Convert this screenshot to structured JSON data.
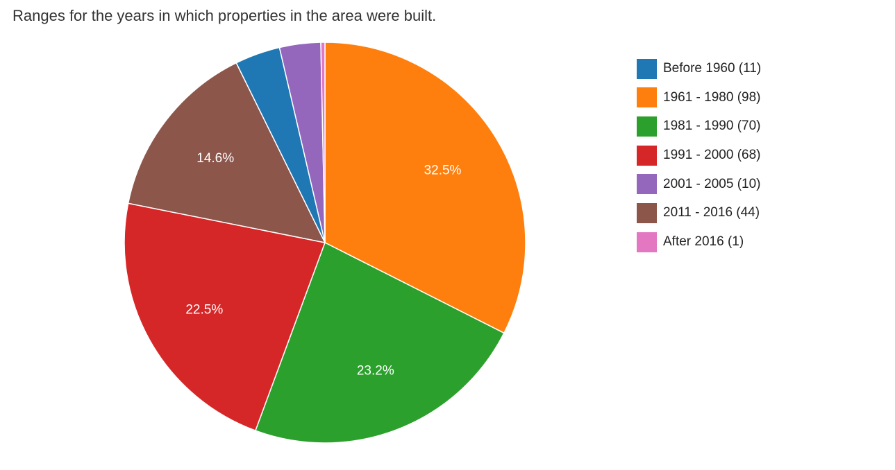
{
  "chart_data": {
    "type": "pie",
    "title": "Ranges for the years in which properties in the area were built.",
    "legend_position": "right",
    "start_angle_deg": 0,
    "direction": "clockwise",
    "slices": [
      {
        "label": "Before 1960",
        "value": 11,
        "color": "#1f77b4",
        "legend_text": "Before 1960 (11)",
        "percent_label": ""
      },
      {
        "label": "1961 - 1980",
        "value": 98,
        "color": "#ff7f0e",
        "legend_text": "1961 - 1980 (98)",
        "percent_label": "32.5%"
      },
      {
        "label": "1981 - 1990",
        "value": 70,
        "color": "#2ca02c",
        "legend_text": "1981 - 1990 (70)",
        "percent_label": "23.2%"
      },
      {
        "label": "1991 - 2000",
        "value": 68,
        "color": "#d62728",
        "legend_text": "1991 - 2000 (68)",
        "percent_label": "22.5%"
      },
      {
        "label": "2001 - 2005",
        "value": 10,
        "color": "#9467bd",
        "legend_text": "2001 - 2005 (10)",
        "percent_label": ""
      },
      {
        "label": "2011 - 2016",
        "value": 44,
        "color": "#8c564b",
        "legend_text": "2011 - 2016 (44)",
        "percent_label": "14.6%"
      },
      {
        "label": "After 2016",
        "value": 1,
        "color": "#e377c2",
        "legend_text": "After 2016 (1)",
        "percent_label": ""
      }
    ],
    "draw_order": [
      "1961 - 1980",
      "1981 - 1990",
      "1991 - 2000",
      "2011 - 2016",
      "Before 1960",
      "2001 - 2005",
      "After 2016"
    ]
  }
}
